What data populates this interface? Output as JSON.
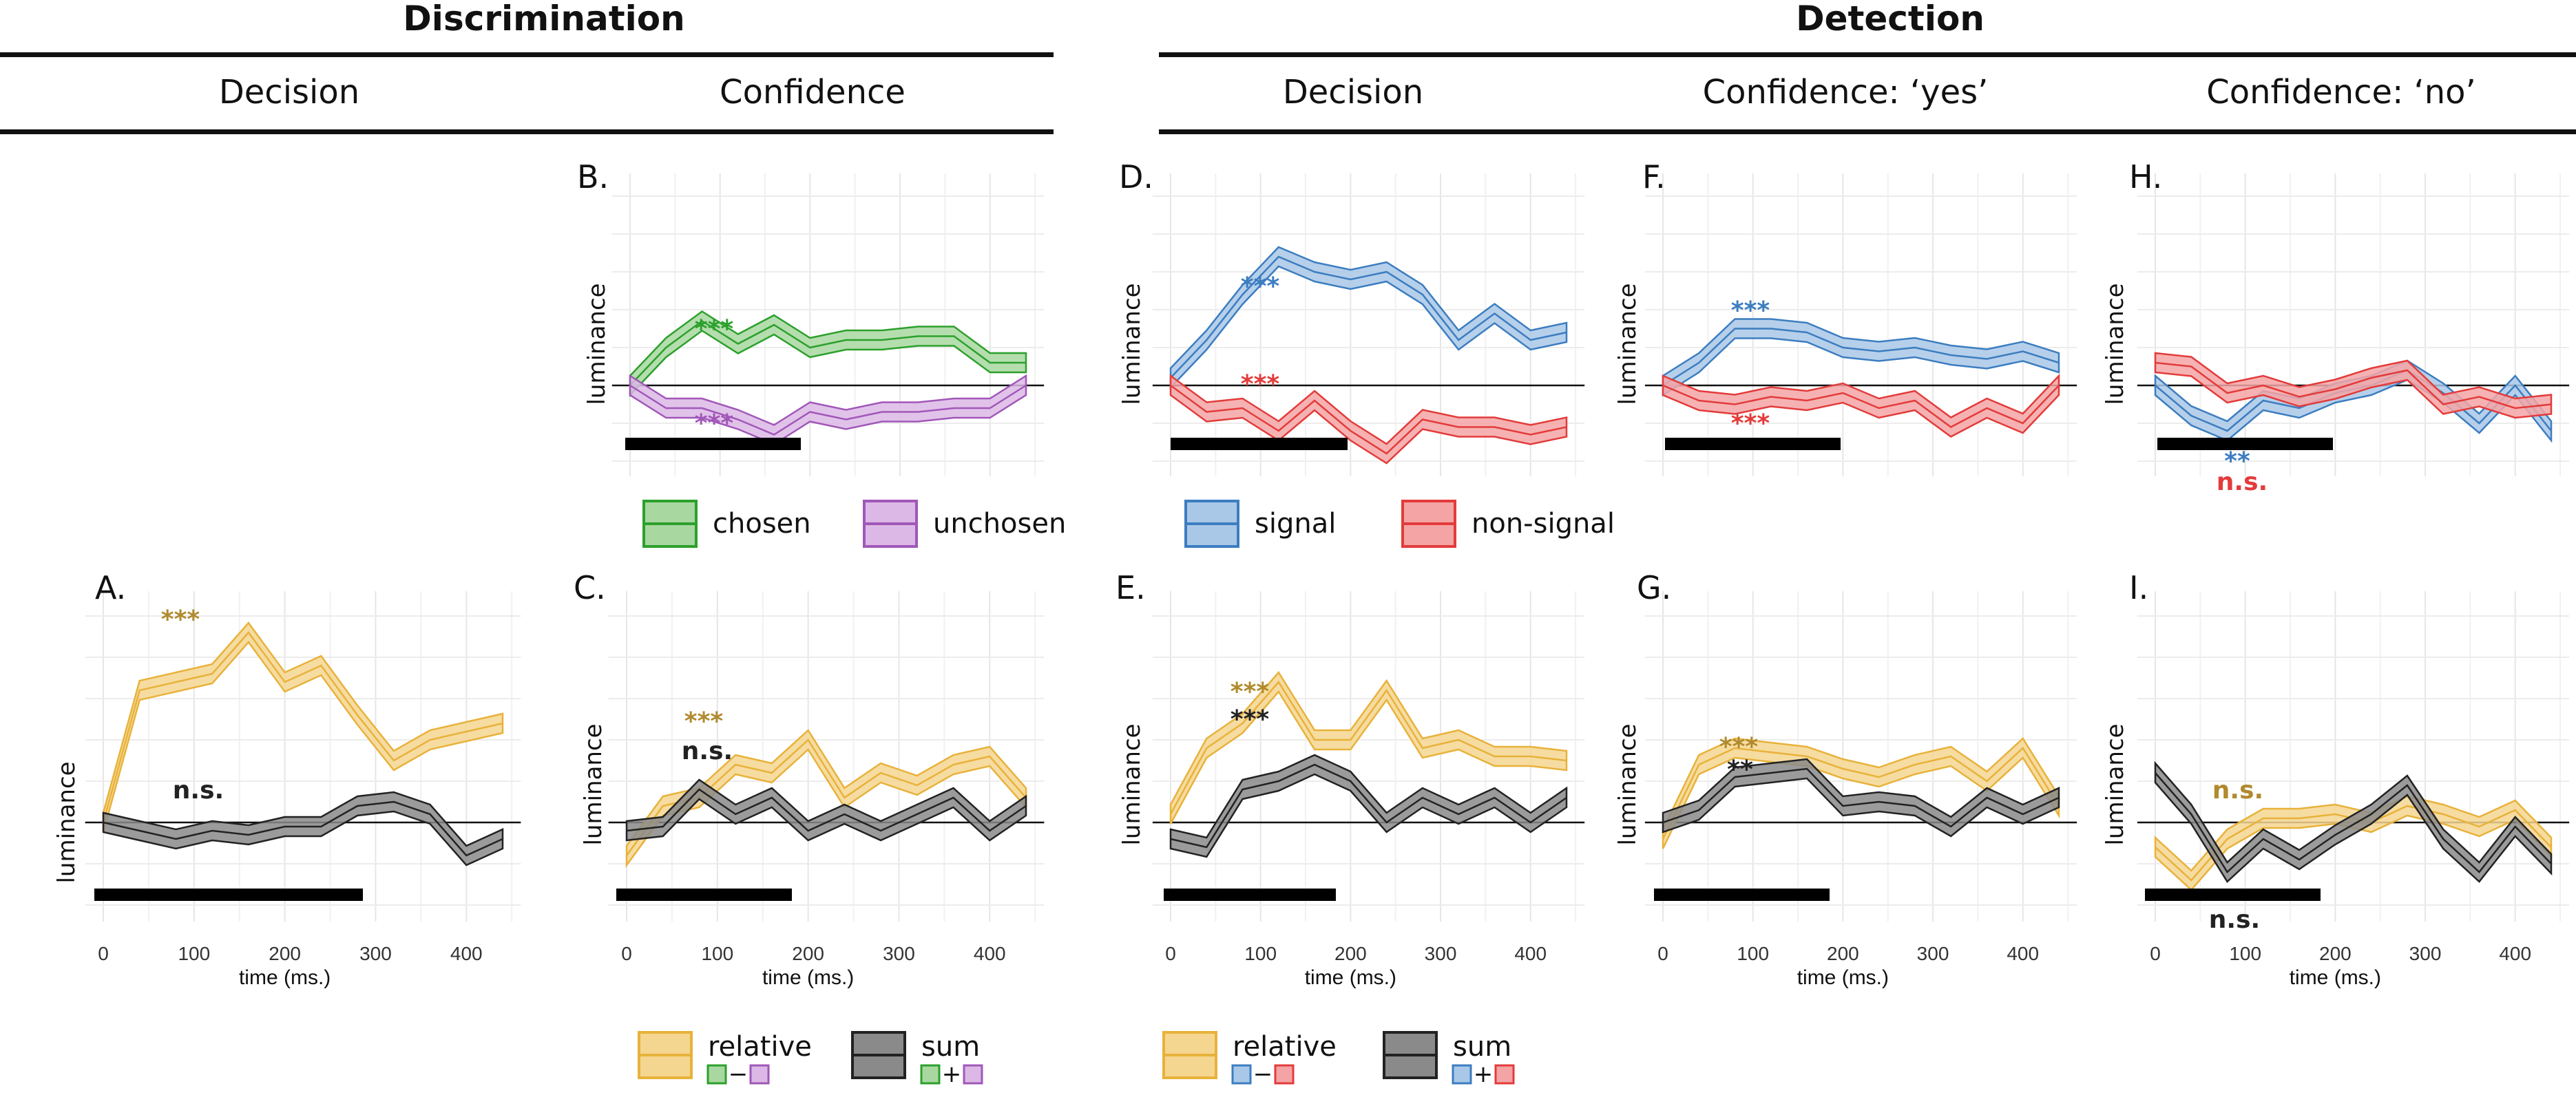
{
  "headers": {
    "discrimination": "Discrimination",
    "detection": "Detection",
    "columns": [
      "Decision",
      "Confidence",
      "Decision",
      "Confidence: ‘yes’",
      "Confidence: ‘no’"
    ]
  },
  "colors": {
    "green": "#2ca02c",
    "green_fill": "#a8d8a0",
    "purple": "#a157b8",
    "purple_fill": "#dcb8e6",
    "blue": "#3c7dc0",
    "blue_fill": "#a9c8e8",
    "red": "#e33b3b",
    "red_fill": "#f4a4a4",
    "gold": "#e8b23a",
    "gold_fill": "#f5d690",
    "gold_text": "#b08a2e",
    "black": "#222222",
    "black_fill": "#8a8a8a"
  },
  "axis": {
    "x_ticks": [
      "0",
      "100",
      "200",
      "300",
      "400"
    ],
    "x_label": "time (ms.)",
    "y_label": "luminance"
  },
  "legends": {
    "discrimination_top": [
      {
        "label": "chosen",
        "color": "green"
      },
      {
        "label": "unchosen",
        "color": "purple"
      }
    ],
    "detection_top": [
      {
        "label": "signal",
        "color": "blue"
      },
      {
        "label": "non-signal",
        "color": "red"
      }
    ],
    "discrimination_bottom": [
      {
        "label": "relative",
        "color": "gold",
        "sub": [
          "green",
          "−",
          "purple"
        ]
      },
      {
        "label": "sum",
        "color": "black",
        "sub": [
          "green",
          "+",
          "purple"
        ]
      }
    ],
    "detection_bottom": [
      {
        "label": "relative",
        "color": "gold",
        "sub": [
          "blue",
          "−",
          "red"
        ]
      },
      {
        "label": "sum",
        "color": "black",
        "sub": [
          "blue",
          "+",
          "red"
        ]
      }
    ]
  },
  "chart_data": [
    {
      "panel": "A.",
      "type": "line",
      "x": [
        0,
        40,
        80,
        120,
        160,
        200,
        240,
        280,
        320,
        360,
        400,
        440
      ],
      "series": [
        {
          "color": "gold",
          "values": [
            0,
            1.6,
            1.7,
            1.8,
            2.3,
            1.7,
            1.9,
            1.3,
            0.75,
            1.0,
            1.1,
            1.2
          ]
        },
        {
          "color": "black",
          "values": [
            0,
            -0.1,
            -0.2,
            -0.1,
            -0.15,
            -0.05,
            -0.05,
            0.2,
            0.25,
            0.1,
            -0.4,
            -0.2
          ]
        }
      ],
      "annotations": [
        {
          "text": "***",
          "color": "gold_text"
        },
        {
          "text": "n.s.",
          "color": "black"
        }
      ]
    },
    {
      "panel": "B.",
      "type": "line",
      "x": [
        0,
        40,
        80,
        120,
        160,
        200,
        240,
        280,
        320,
        360,
        400,
        440
      ],
      "series": [
        {
          "color": "green",
          "values": [
            0,
            0.5,
            0.85,
            0.55,
            0.8,
            0.5,
            0.6,
            0.6,
            0.65,
            0.65,
            0.3,
            0.3
          ]
        },
        {
          "color": "purple",
          "values": [
            0,
            -0.3,
            -0.3,
            -0.45,
            -0.65,
            -0.35,
            -0.45,
            -0.35,
            -0.35,
            -0.3,
            -0.3,
            0
          ]
        }
      ],
      "annotations": [
        {
          "text": "***",
          "color": "green"
        },
        {
          "text": "***",
          "color": "purple"
        }
      ]
    },
    {
      "panel": "C.",
      "type": "line",
      "x": [
        0,
        40,
        80,
        120,
        160,
        200,
        240,
        280,
        320,
        360,
        400,
        440
      ],
      "series": [
        {
          "color": "gold",
          "values": [
            -0.4,
            0.2,
            0.3,
            0.7,
            0.6,
            1.0,
            0.3,
            0.6,
            0.45,
            0.7,
            0.8,
            0.3
          ]
        },
        {
          "color": "black",
          "values": [
            -0.1,
            -0.05,
            0.4,
            0.1,
            0.3,
            -0.1,
            0.1,
            -0.1,
            0.1,
            0.3,
            -0.1,
            0.2
          ]
        }
      ],
      "annotations": [
        {
          "text": "***",
          "color": "gold_text"
        },
        {
          "text": "n.s.",
          "color": "black"
        }
      ]
    },
    {
      "panel": "D.",
      "type": "line",
      "x": [
        0,
        40,
        80,
        120,
        160,
        200,
        240,
        280,
        320,
        360,
        400,
        440
      ],
      "series": [
        {
          "color": "blue",
          "values": [
            0.1,
            0.6,
            1.2,
            1.7,
            1.5,
            1.4,
            1.5,
            1.2,
            0.6,
            0.95,
            0.6,
            0.7
          ]
        },
        {
          "color": "red",
          "values": [
            0,
            -0.35,
            -0.3,
            -0.6,
            -0.2,
            -0.6,
            -0.9,
            -0.45,
            -0.55,
            -0.55,
            -0.65,
            -0.55
          ]
        }
      ],
      "annotations": [
        {
          "text": "***",
          "color": "blue"
        },
        {
          "text": "***",
          "color": "red"
        }
      ]
    },
    {
      "panel": "E.",
      "type": "line",
      "x": [
        0,
        40,
        80,
        120,
        160,
        200,
        240,
        280,
        320,
        360,
        400,
        440
      ],
      "series": [
        {
          "color": "gold",
          "values": [
            0.1,
            0.9,
            1.2,
            1.7,
            1.0,
            1.0,
            1.6,
            0.9,
            1.0,
            0.8,
            0.8,
            0.75
          ]
        },
        {
          "color": "black",
          "values": [
            -0.2,
            -0.3,
            0.4,
            0.5,
            0.7,
            0.5,
            0.0,
            0.3,
            0.1,
            0.3,
            0.0,
            0.3
          ]
        }
      ],
      "annotations": [
        {
          "text": "***",
          "color": "gold_text"
        },
        {
          "text": "***",
          "color": "black"
        }
      ]
    },
    {
      "panel": "F.",
      "type": "line",
      "x": [
        0,
        40,
        80,
        120,
        160,
        200,
        240,
        280,
        320,
        360,
        400,
        440
      ],
      "series": [
        {
          "color": "blue",
          "values": [
            0,
            0.3,
            0.75,
            0.75,
            0.7,
            0.5,
            0.45,
            0.5,
            0.4,
            0.35,
            0.45,
            0.3
          ]
        },
        {
          "color": "red",
          "values": [
            0,
            -0.2,
            -0.25,
            -0.15,
            -0.2,
            -0.1,
            -0.3,
            -0.2,
            -0.55,
            -0.3,
            -0.5,
            0
          ]
        }
      ],
      "annotations": [
        {
          "text": "***",
          "color": "blue"
        },
        {
          "text": "***",
          "color": "red"
        }
      ]
    },
    {
      "panel": "G.",
      "type": "line",
      "x": [
        0,
        40,
        80,
        120,
        160,
        200,
        240,
        280,
        320,
        360,
        400,
        440
      ],
      "series": [
        {
          "color": "gold",
          "values": [
            -0.2,
            0.7,
            0.9,
            0.85,
            0.8,
            0.65,
            0.55,
            0.7,
            0.8,
            0.5,
            0.9,
            0.2
          ]
        },
        {
          "color": "black",
          "values": [
            0,
            0.15,
            0.55,
            0.6,
            0.65,
            0.2,
            0.25,
            0.2,
            -0.05,
            0.3,
            0.1,
            0.3
          ]
        }
      ],
      "annotations": [
        {
          "text": "***",
          "color": "gold_text"
        },
        {
          "text": "**",
          "color": "black"
        }
      ]
    },
    {
      "panel": "H.",
      "type": "line",
      "x": [
        0,
        40,
        80,
        120,
        160,
        200,
        240,
        280,
        320,
        360,
        400,
        440
      ],
      "series": [
        {
          "color": "blue",
          "values": [
            0,
            -0.4,
            -0.6,
            -0.2,
            -0.3,
            -0.1,
            0.0,
            0.2,
            -0.1,
            -0.5,
            0.0,
            -0.6
          ]
        },
        {
          "color": "red",
          "values": [
            0.3,
            0.25,
            -0.1,
            0.0,
            -0.15,
            -0.05,
            0.1,
            0.2,
            -0.25,
            -0.15,
            -0.3,
            -0.25
          ]
        }
      ],
      "annotations": [
        {
          "text": "**",
          "color": "blue"
        },
        {
          "text": "n.s.",
          "color": "red"
        }
      ]
    },
    {
      "panel": "I.",
      "type": "line",
      "x": [
        0,
        40,
        80,
        120,
        160,
        200,
        240,
        280,
        320,
        360,
        400,
        440
      ],
      "series": [
        {
          "color": "gold",
          "values": [
            -0.3,
            -0.7,
            -0.2,
            0.05,
            0.05,
            0.1,
            0.0,
            0.2,
            0.1,
            -0.05,
            0.15,
            -0.3
          ]
        },
        {
          "color": "black",
          "values": [
            0.6,
            0.1,
            -0.6,
            -0.2,
            -0.45,
            -0.15,
            0.1,
            0.45,
            -0.2,
            -0.6,
            -0.05,
            -0.5
          ]
        }
      ],
      "annotations": [
        {
          "text": "n.s.",
          "color": "gold_text"
        },
        {
          "text": "n.s.",
          "color": "black"
        }
      ]
    }
  ]
}
